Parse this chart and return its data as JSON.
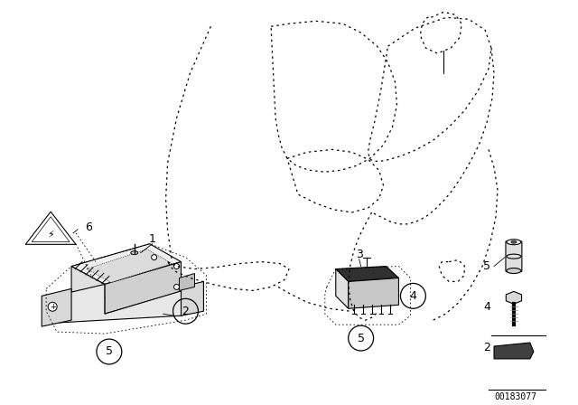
{
  "background_color": "#ffffff",
  "image_number": "00183077",
  "fig_width": 6.4,
  "fig_height": 4.48,
  "dpi": 100
}
